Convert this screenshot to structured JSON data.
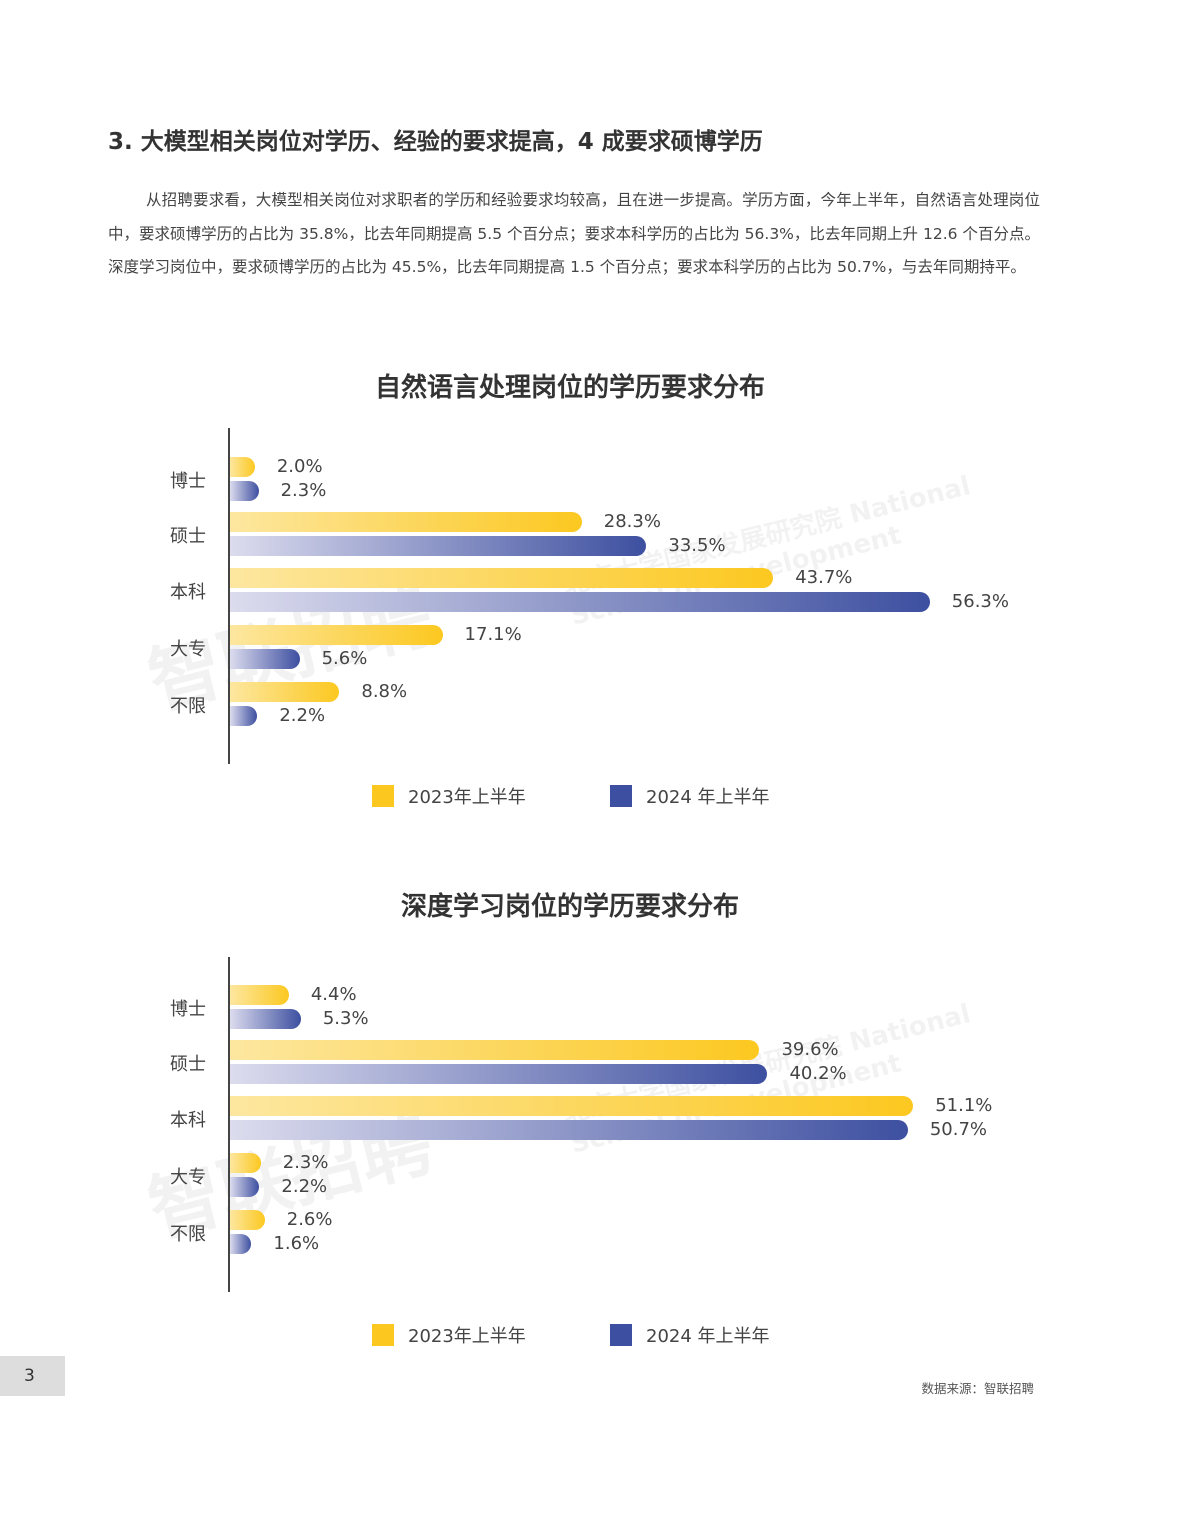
{
  "heading": "3. 大模型相关岗位对学历、经验的要求提高，4 成要求硕博学历",
  "paragraph": "从招聘要求看，大模型相关岗位对求职者的学历和经验要求均较高，且在进一步提高。学历方面，今年上半年，自然语言处理岗位中，要求硕博学历的占比为 35.8%，比去年同期提高 5.5 个百分点；要求本科学历的占比为 56.3%，比去年同期上升 12.6 个百分点。深度学习岗位中，要求硕博学历的占比为 45.5%，比去年同期提高 1.5 个百分点；要求本科学历的占比为 50.7%，与去年同期持平。",
  "watermark": "智联招聘",
  "watermark2": "北京大学国家发展研究院 National School of Development",
  "chart_data": [
    {
      "type": "bar",
      "orientation": "horizontal",
      "title": "自然语言处理岗位的学历要求分布",
      "categories": [
        "博士",
        "硕士",
        "本科",
        "大专",
        "不限"
      ],
      "series": [
        {
          "name": "2023年上半年",
          "color": "#fcc820",
          "values": [
            2.0,
            28.3,
            43.7,
            17.1,
            8.8
          ],
          "labels": [
            "2.0%",
            "28.3%",
            "43.7%",
            "17.1%",
            "8.8%"
          ]
        },
        {
          "name": "2024 年上半年",
          "color": "#3d4fa0",
          "values": [
            2.3,
            33.5,
            56.3,
            5.6,
            2.2
          ],
          "labels": [
            "2.3%",
            "33.5%",
            "56.3%",
            "5.6%",
            "2.2%"
          ]
        }
      ],
      "legend": "bottom"
    },
    {
      "type": "bar",
      "orientation": "horizontal",
      "title": "深度学习岗位的学历要求分布",
      "categories": [
        "博士",
        "硕士",
        "本科",
        "大专",
        "不限"
      ],
      "series": [
        {
          "name": "2023年上半年",
          "color": "#fcc820",
          "values": [
            4.4,
            39.6,
            51.1,
            2.3,
            2.6
          ],
          "labels": [
            "4.4%",
            "39.6%",
            "51.1%",
            "2.3%",
            "2.6%"
          ]
        },
        {
          "name": "2024 年上半年",
          "color": "#3d4fa0",
          "values": [
            5.3,
            40.2,
            50.7,
            2.2,
            1.6
          ],
          "labels": [
            "5.3%",
            "40.2%",
            "50.7%",
            "2.2%",
            "1.6%"
          ]
        }
      ],
      "legend": "bottom"
    }
  ],
  "page_number": "3",
  "source": "数据来源：智联招聘"
}
